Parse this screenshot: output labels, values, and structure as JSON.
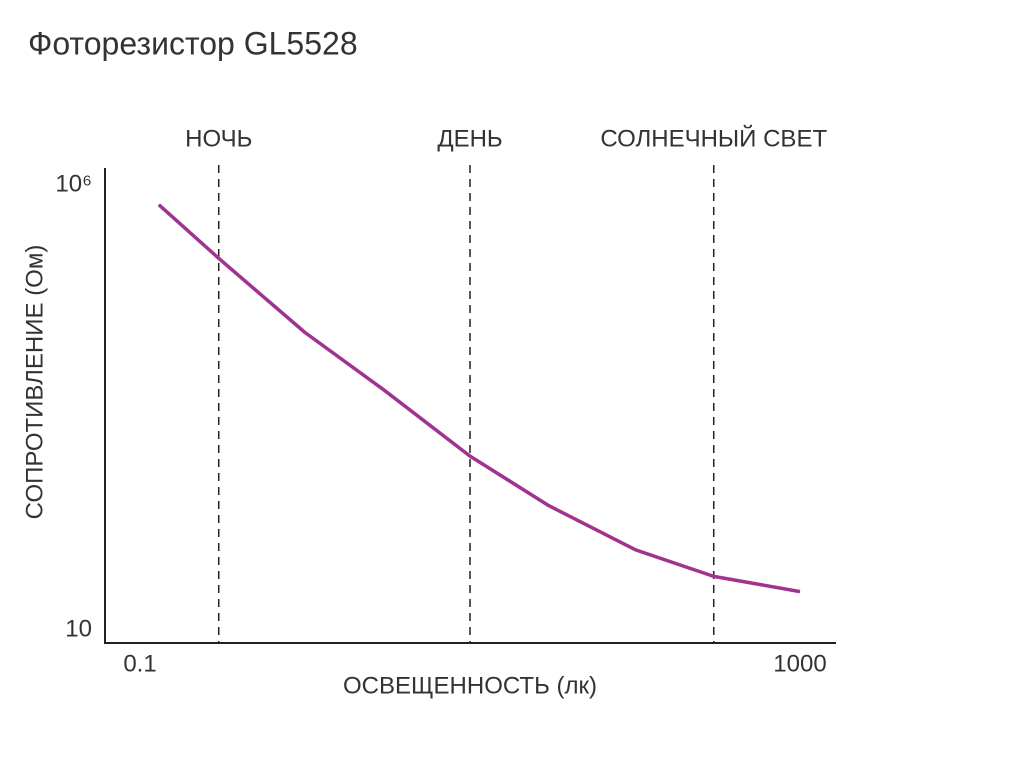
{
  "chart_data": {
    "type": "line",
    "title": "Фоторезистор GL5528",
    "x_label": "ОСВЕЩЕННОСТЬ (лк)",
    "y_label": "СОПРОТИВЛЕНИЕ (Ом)",
    "x": [
      0.13,
      0.3,
      1,
      3,
      10,
      30,
      100,
      300,
      1000
    ],
    "series": [
      {
        "color": "#a0338f",
        "values": [
          600000,
          150000,
          22000,
          5000,
          900,
          250,
          80,
          40,
          27
        ]
      }
    ],
    "xscale": "log",
    "yscale": "log",
    "xlim": [
      0.1,
      1000
    ],
    "xticks": [
      0.1,
      1000
    ],
    "ylim": [
      10,
      1000000
    ],
    "yticks": [
      10,
      {
        "value": 1000000,
        "label": "10⁶"
      }
    ],
    "markers": [
      {
        "label": "НОЧЬ",
        "x": 0.3
      },
      {
        "label": "ДЕНЬ",
        "x": 10
      },
      {
        "label": "СОЛНЕЧНЫЙ СВЕТ",
        "x": 300
      }
    ]
  }
}
